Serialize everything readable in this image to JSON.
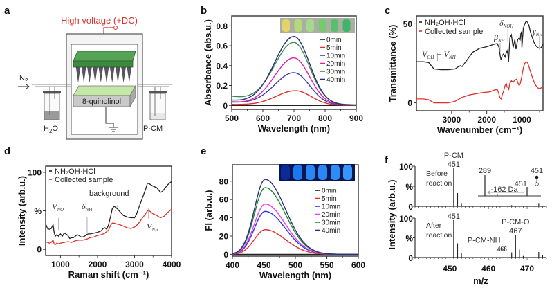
{
  "figure": {
    "panels": [
      "a",
      "b",
      "c",
      "d",
      "e",
      "f"
    ]
  },
  "panel_a": {
    "letter": "a",
    "voltage_label": "High voltage (+DC)",
    "n2_label": "N",
    "n2_sub": "2",
    "vessel_label": "8-quinolinol",
    "left_bottle_label": "H",
    "left_bottle_sub": "2",
    "left_bottle_suffix": "O",
    "right_bottle_label": "P-CM",
    "colors": {
      "voltage": "#e0302a",
      "electrode": "#3c8a3c",
      "liquid": "#b7e39a"
    }
  },
  "chart_data": [
    {
      "id": "b",
      "letter": "b",
      "type": "line",
      "title": "",
      "xlabel": "Wavelength (nm)",
      "ylabel": "Absorbance (abs.u.)",
      "xlim": [
        500,
        900
      ],
      "ylim": [
        -0.04,
        0.9
      ],
      "xticks": [
        500,
        600,
        700,
        800,
        900
      ],
      "yticks": [
        0,
        0.2,
        0.4,
        0.6,
        0.8
      ],
      "ytick_labels": [
        "0",
        "0.2",
        "0.4",
        "0.6",
        "0.8"
      ],
      "legend": "right",
      "inset": "vial photo, yellow to green",
      "series": [
        {
          "name": "0min",
          "color": "#222222",
          "peak": 700,
          "height": 0.0,
          "base": 0.0
        },
        {
          "name": "5min",
          "color": "#e0302a",
          "peak": 705,
          "height": 0.145,
          "base": 0.01
        },
        {
          "name": "10min",
          "color": "#3b3fb0",
          "peak": 700,
          "height": 0.32,
          "base": 0.035
        },
        {
          "name": "20min",
          "color": "#e020a8",
          "peak": 700,
          "height": 0.47,
          "base": 0.03
        },
        {
          "name": "30min",
          "color": "#3f8a4e",
          "peak": 700,
          "height": 0.61,
          "base": 0.09
        },
        {
          "name": "40min",
          "color": "#2a2f78",
          "peak": 700,
          "height": 0.68,
          "base": 0.05
        }
      ]
    },
    {
      "id": "c",
      "letter": "c",
      "type": "line",
      "xlabel": "Wavenumber (cm⁻¹)",
      "ylabel": "Transmittance (%)",
      "xlim": [
        4000,
        400
      ],
      "ylim": [
        -5,
        55
      ],
      "xticks": [
        3000,
        2000,
        1000
      ],
      "yticks": [
        0,
        50
      ],
      "legend": "top-left",
      "series": [
        {
          "name": "NH₂OH·HCl",
          "color": "#222222",
          "x": [
            4000,
            3800,
            3650,
            3500,
            3300,
            3100,
            2900,
            2800,
            2750,
            2700,
            2600,
            2400,
            2200,
            2000,
            1800,
            1700,
            1650,
            1620,
            1590,
            1560,
            1520,
            1480,
            1440,
            1420,
            1400,
            1380,
            1340,
            1300,
            1250,
            1200,
            1170,
            1120,
            1080,
            1050,
            1030,
            1010,
            1000,
            960,
            920,
            880,
            840,
            800,
            760,
            700,
            650,
            600,
            550,
            500,
            450,
            400
          ],
          "y": [
            26,
            26,
            25.5,
            21.5,
            21,
            21,
            21.5,
            23,
            23.5,
            23,
            26,
            32,
            34.5,
            35.5,
            37,
            37.5,
            35,
            30,
            27,
            30,
            31,
            29,
            32,
            33,
            31,
            26,
            41,
            43,
            35,
            40,
            34,
            40,
            41,
            40,
            44,
            45,
            35,
            47,
            50,
            51.5,
            51,
            49,
            45,
            41,
            38,
            36,
            35,
            34.5,
            35,
            37
          ]
        },
        {
          "name": "Collected sample",
          "color": "#e0302a",
          "x": [
            4000,
            3800,
            3650,
            3500,
            3300,
            3100,
            2900,
            2700,
            2500,
            2300,
            2100,
            1900,
            1800,
            1700,
            1660,
            1620,
            1590,
            1560,
            1520,
            1480,
            1440,
            1420,
            1400,
            1380,
            1340,
            1300,
            1250,
            1200,
            1150,
            1120,
            1080,
            1050,
            1000,
            960,
            920,
            880,
            840,
            800,
            760,
            700,
            650,
            600,
            550,
            500,
            450,
            400
          ],
          "y": [
            2.5,
            2.5,
            2,
            0,
            0,
            0,
            1,
            3.5,
            5,
            5.8,
            6.5,
            7,
            8,
            8.5,
            6,
            3,
            2.5,
            5,
            7.5,
            11,
            12,
            10,
            10,
            8,
            12.5,
            14,
            13,
            14.5,
            15,
            13,
            11,
            12,
            17,
            22,
            25,
            26,
            25.5,
            23,
            20,
            16,
            13,
            11,
            9.5,
            9,
            9.5,
            10.5
          ]
        }
      ],
      "annotations": [
        {
          "text": "V",
          "sub": "OH",
          "text2": " + V",
          "sub2": "NH",
          "x": 3400
        },
        {
          "text": "β",
          "sub": "NH",
          "x": 1620
        },
        {
          "text": "δ",
          "sub": "NOH",
          "x": 1400
        },
        {
          "text": "γ",
          "sub": "NH",
          "x": 500
        }
      ]
    },
    {
      "id": "d",
      "letter": "d",
      "type": "line",
      "xlabel": "Raman shift (cm⁻¹)",
      "ylabel": "Intensity (arb.u.)",
      "xlim": [
        600,
        4000
      ],
      "ylim": [
        -8,
        108
      ],
      "xticks": [
        1000,
        2000,
        3000,
        4000
      ],
      "yticks": [
        0,
        50,
        100
      ],
      "ytick_labels": [
        "0",
        "%",
        "100"
      ],
      "legend": "top-left",
      "series": [
        {
          "name": "NH₂OH·HCl",
          "color": "#222222",
          "x": [
            600,
            650,
            700,
            750,
            800,
            830,
            860,
            900,
            950,
            1000,
            1050,
            1100,
            1150,
            1200,
            1250,
            1300,
            1350,
            1400,
            1450,
            1500,
            1550,
            1600,
            1650,
            1700,
            1750,
            1800,
            1900,
            2000,
            2100,
            2150,
            2200,
            2250,
            2300,
            2350,
            2400,
            2450,
            2500,
            2550,
            2600,
            2700,
            2800,
            2900,
            3000,
            3050,
            3100,
            3200,
            3300,
            3350,
            3400,
            3500,
            3600,
            3650,
            3700,
            3750,
            3800,
            3900,
            4000
          ],
          "y": [
            33,
            27,
            26,
            27,
            32,
            22,
            17,
            19,
            17,
            20,
            17,
            21,
            20,
            18,
            14,
            15,
            15,
            17,
            19,
            18,
            16,
            16,
            17,
            19,
            20,
            20,
            21,
            22,
            24,
            27,
            28,
            26,
            32,
            42,
            53,
            56,
            54,
            52,
            49,
            44,
            42,
            41,
            41,
            45,
            52,
            65,
            78,
            86,
            85,
            82,
            80,
            77,
            74,
            75,
            78,
            84,
            88
          ]
        },
        {
          "name": "Collected sample",
          "color": "#e0302a",
          "x": [
            600,
            650,
            700,
            750,
            800,
            830,
            860,
            900,
            950,
            1000,
            1100,
            1200,
            1300,
            1400,
            1500,
            1600,
            1700,
            1800,
            1900,
            2000,
            2100,
            2200,
            2300,
            2350,
            2400,
            2450,
            2500,
            2600,
            2700,
            2800,
            2900,
            3000,
            3100,
            3200,
            3300,
            3350,
            3400,
            3500,
            3600,
            3700,
            3800,
            3900,
            4000
          ],
          "y": [
            10,
            9,
            8,
            9,
            12,
            7,
            6,
            8,
            7,
            8,
            9,
            10,
            9,
            11,
            12,
            12,
            13,
            15,
            16,
            18,
            19,
            21,
            25,
            31,
            34,
            34,
            33,
            32,
            30,
            28,
            27,
            29,
            33,
            40,
            46,
            50,
            50,
            46,
            44,
            41,
            43,
            48,
            52
          ]
        }
      ],
      "annotations": [
        {
          "text": "V",
          "sub": "NO",
          "x": 950
        },
        {
          "text": "δ",
          "sub": "NH",
          "x": 1720
        },
        {
          "text": "background",
          "x": 2550
        },
        {
          "text": "V",
          "sub": "NH",
          "x": 3380
        }
      ]
    },
    {
      "id": "e",
      "letter": "e",
      "type": "line",
      "xlabel": "Wavelength (nm)",
      "ylabel": "FI (arb.u.)",
      "xlim": [
        400,
        600
      ],
      "ylim": [
        -2,
        98
      ],
      "xticks": [
        400,
        450,
        500,
        550,
        600
      ],
      "yticks": [
        0,
        20,
        40,
        60,
        80
      ],
      "legend": "right",
      "inset": "vial photo under UV, dark to bright blue",
      "series": [
        {
          "name": "0min",
          "color": "#222222",
          "peak": 452,
          "height": 0.0
        },
        {
          "name": "5min",
          "color": "#e0302a",
          "peak": 452,
          "height": 27
        },
        {
          "name": "10min",
          "color": "#2d35e0",
          "peak": 452,
          "height": 47
        },
        {
          "name": "20min",
          "color": "#f03cf0",
          "peak": 452,
          "height": 55
        },
        {
          "name": "30min",
          "color": "#1f8a28",
          "peak": 452,
          "height": 73
        },
        {
          "name": "40min",
          "color": "#2a2f80",
          "peak": 452,
          "height": 82
        }
      ]
    },
    {
      "id": "f",
      "letter": "f",
      "type": "bar",
      "xlabel": "m/z",
      "ylabel": "Intensity (arb.u.)",
      "xlim": [
        441,
        475
      ],
      "xticks": [
        450,
        460,
        470
      ],
      "yticks_labels": [
        "0",
        "%",
        "100"
      ],
      "subplots": [
        {
          "label_line1": "Before",
          "label_line2": "reaction",
          "peaks": [
            {
              "mz": 451,
              "rel": 95,
              "label": "451",
              "label_top": "P-CM"
            },
            {
              "mz": 452,
              "rel": 33
            },
            {
              "mz": 453,
              "rel": 8
            },
            {
              "mz": 466,
              "rel": 3
            },
            {
              "mz": 473,
              "rel": 8
            }
          ],
          "inset": {
            "peaks": [
              {
                "mz": 289,
                "rel": 100,
                "label": "289"
              },
              {
                "mz": 451,
                "rel": 40,
                "label": "451"
              }
            ],
            "arrow_label": "-162 Da",
            "legend_label": "451"
          }
        },
        {
          "label_line1": "After",
          "label_line2": "reaction",
          "peaks": [
            {
              "mz": 451,
              "rel": 95,
              "label": "451"
            },
            {
              "mz": 452,
              "rel": 36
            },
            {
              "mz": 453,
              "rel": 12
            },
            {
              "mz": 466,
              "rel": 13,
              "label": "466",
              "label_top": "P-CM-NH"
            },
            {
              "mz": 467,
              "rel": 58,
              "label": "467",
              "label_top": "P-CM-O"
            },
            {
              "mz": 468,
              "rel": 20
            },
            {
              "mz": 469,
              "rel": 4
            },
            {
              "mz": 473,
              "rel": 14
            },
            {
              "mz": 474,
              "rel": 7
            }
          ]
        }
      ]
    }
  ]
}
